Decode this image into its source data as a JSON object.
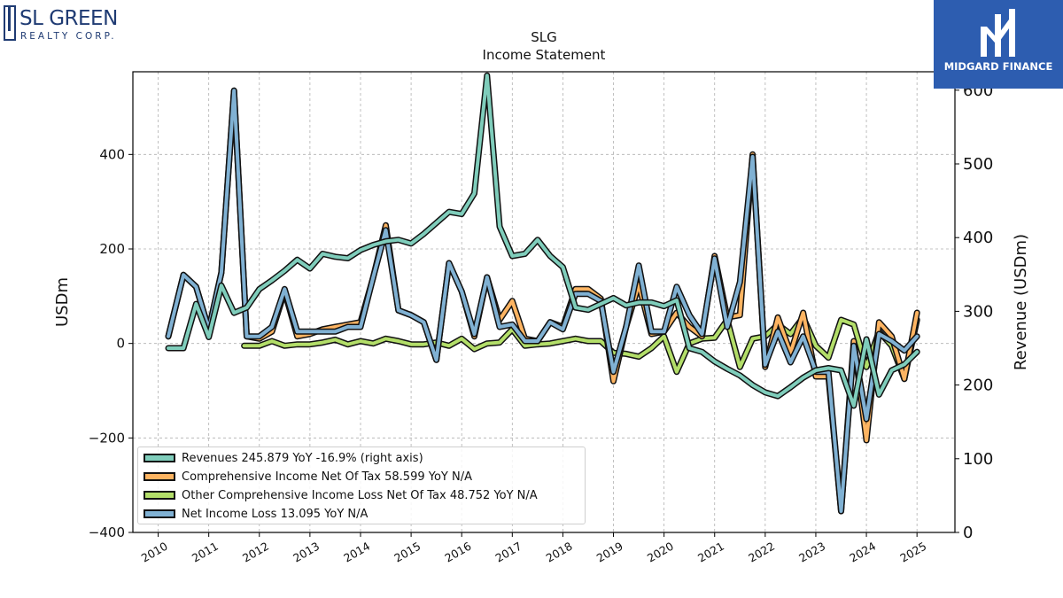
{
  "header": {
    "title": "SLG",
    "subtitle": "Income Statement"
  },
  "logos": {
    "left": {
      "name": "SL GREEN",
      "sub": "REALTY CORP.",
      "color": "#1f3b73"
    },
    "right": {
      "brand": "MIDGARD FINANCE",
      "background": "#2d5db0"
    }
  },
  "chart_data": {
    "type": "line",
    "title": "SLG",
    "subtitle": "Income Statement",
    "ylabel_left": "USDm",
    "ylabel_right": "Revenue (USDm)",
    "ylim_left": [
      -400,
      575
    ],
    "ylim_right": [
      0,
      625
    ],
    "xlim": [
      2009.5,
      2025.75
    ],
    "left_ticks": [
      -400,
      -200,
      0,
      200,
      400
    ],
    "left_tick_labels": [
      "−400",
      "−200",
      "0",
      "200",
      "400"
    ],
    "right_ticks": [
      0,
      100,
      200,
      300,
      400,
      500,
      600
    ],
    "right_tick_labels": [
      "0",
      "100",
      "200",
      "300",
      "400",
      "500",
      "600"
    ],
    "x_ticks": [
      2010,
      2011,
      2012,
      2013,
      2014,
      2015,
      2016,
      2017,
      2018,
      2019,
      2020,
      2021,
      2022,
      2023,
      2024,
      2025
    ],
    "x_tick_labels": [
      "2010",
      "2011",
      "2012",
      "2013",
      "2014",
      "2015",
      "2016",
      "2017",
      "2018",
      "2019",
      "2020",
      "2021",
      "2022",
      "2023",
      "2024",
      "2025"
    ],
    "grid": true,
    "legend_position": "bottom-left",
    "series": [
      {
        "name": "Revenues",
        "legend_label": "Revenues  245.879 YoY -16.9% (right axis)",
        "axis": "right",
        "color": "#7fcdbb",
        "x": [
          2010.2,
          2010.5,
          2010.75,
          2011.0,
          2011.25,
          2011.5,
          2011.75,
          2012.0,
          2012.25,
          2012.5,
          2012.75,
          2013.0,
          2013.25,
          2013.5,
          2013.75,
          2014.0,
          2014.25,
          2014.5,
          2014.75,
          2015.0,
          2015.25,
          2015.5,
          2015.75,
          2016.0,
          2016.25,
          2016.5,
          2016.75,
          2017.0,
          2017.25,
          2017.5,
          2017.75,
          2018.0,
          2018.25,
          2018.5,
          2018.75,
          2019.0,
          2019.25,
          2019.5,
          2019.75,
          2020.0,
          2020.25,
          2020.5,
          2020.75,
          2021.0,
          2021.25,
          2021.5,
          2021.75,
          2022.0,
          2022.25,
          2022.5,
          2022.75,
          2023.0,
          2023.25,
          2023.5,
          2023.75,
          2024.0,
          2024.25,
          2024.5,
          2024.75,
          2025.0
        ],
        "values": [
          250,
          250,
          310,
          265,
          335,
          298,
          305,
          330,
          342,
          355,
          370,
          358,
          378,
          374,
          372,
          383,
          390,
          395,
          397,
          392,
          405,
          420,
          435,
          432,
          460,
          620,
          415,
          375,
          378,
          397,
          375,
          360,
          305,
          302,
          310,
          318,
          308,
          312,
          312,
          307,
          315,
          250,
          245,
          232,
          222,
          213,
          200,
          190,
          185,
          197,
          210,
          220,
          223,
          220,
          172,
          262,
          187,
          220,
          228,
          245
        ]
      },
      {
        "name": "Comprehensive Income Net Of Tax",
        "legend_label": "Comprehensive Income Net Of Tax  58.599 YoY N/A",
        "axis": "left",
        "color": "#fdb462",
        "x": [
          2010.2,
          2010.5,
          2010.75,
          2011.0,
          2011.25,
          2011.5,
          2011.75,
          2012.0,
          2012.25,
          2012.5,
          2012.75,
          2013.0,
          2013.25,
          2013.5,
          2013.75,
          2014.0,
          2014.25,
          2014.5,
          2014.75,
          2015.0,
          2015.25,
          2015.5,
          2015.75,
          2016.0,
          2016.25,
          2016.5,
          2016.75,
          2017.0,
          2017.25,
          2017.5,
          2017.75,
          2018.0,
          2018.25,
          2018.5,
          2018.75,
          2019.0,
          2019.25,
          2019.5,
          2019.75,
          2020.0,
          2020.25,
          2020.5,
          2020.75,
          2021.0,
          2021.25,
          2021.5,
          2021.75,
          2022.0,
          2022.25,
          2022.5,
          2022.75,
          2023.0,
          2023.25,
          2023.5,
          2023.75,
          2024.0,
          2024.25,
          2024.5,
          2024.75,
          2025.0
        ],
        "values": [
          15,
          145,
          120,
          30,
          150,
          535,
          15,
          10,
          25,
          110,
          15,
          20,
          30,
          35,
          40,
          45,
          140,
          250,
          70,
          60,
          45,
          -35,
          170,
          110,
          15,
          140,
          50,
          90,
          10,
          5,
          45,
          35,
          115,
          115,
          95,
          -80,
          35,
          125,
          20,
          25,
          65,
          35,
          15,
          185,
          55,
          60,
          400,
          -50,
          55,
          -20,
          65,
          -70,
          -70,
          -355,
          5,
          -205,
          45,
          15,
          -75,
          65
        ]
      },
      {
        "name": "Other Comprehensive Income Loss Net Of Tax",
        "legend_label": "Other Comprehensive Income Loss Net Of Tax  48.752 YoY N/A",
        "axis": "left",
        "color": "#b3de69",
        "x": [
          2011.7,
          2012.0,
          2012.25,
          2012.5,
          2012.75,
          2013.0,
          2013.25,
          2013.5,
          2013.75,
          2014.0,
          2014.25,
          2014.5,
          2014.75,
          2015.0,
          2015.25,
          2015.5,
          2015.75,
          2016.0,
          2016.25,
          2016.5,
          2016.75,
          2017.0,
          2017.25,
          2017.5,
          2017.75,
          2018.0,
          2018.25,
          2018.5,
          2018.75,
          2019.0,
          2019.25,
          2019.5,
          2019.75,
          2020.0,
          2020.25,
          2020.5,
          2020.75,
          2021.0,
          2021.25,
          2021.5,
          2021.75,
          2022.0,
          2022.25,
          2022.5,
          2022.75,
          2023.0,
          2023.25,
          2023.5,
          2023.75,
          2024.0,
          2024.25,
          2024.5,
          2024.75,
          2025.0
        ],
        "values": [
          -5,
          -5,
          5,
          -5,
          -2,
          -2,
          2,
          8,
          -2,
          5,
          0,
          10,
          5,
          -2,
          -2,
          2,
          -5,
          10,
          -12,
          0,
          2,
          30,
          -5,
          -2,
          0,
          5,
          10,
          5,
          5,
          -20,
          -22,
          -28,
          -10,
          15,
          -60,
          0,
          10,
          12,
          50,
          -50,
          10,
          15,
          40,
          20,
          55,
          -5,
          -30,
          50,
          40,
          -50,
          25,
          -5,
          -75,
          50
        ]
      },
      {
        "name": "Net Income Loss",
        "legend_label": "Net Income Loss  13.095 YoY N/A",
        "axis": "left",
        "color": "#80b1d3",
        "x": [
          2010.2,
          2010.5,
          2010.75,
          2011.0,
          2011.25,
          2011.5,
          2011.75,
          2012.0,
          2012.25,
          2012.5,
          2012.75,
          2013.0,
          2013.25,
          2013.5,
          2013.75,
          2014.0,
          2014.25,
          2014.5,
          2014.75,
          2015.0,
          2015.25,
          2015.5,
          2015.75,
          2016.0,
          2016.25,
          2016.5,
          2016.75,
          2017.0,
          2017.25,
          2017.5,
          2017.75,
          2018.0,
          2018.25,
          2018.5,
          2018.75,
          2019.0,
          2019.25,
          2019.5,
          2019.75,
          2020.0,
          2020.25,
          2020.5,
          2020.75,
          2021.0,
          2021.25,
          2021.5,
          2021.75,
          2022.0,
          2022.25,
          2022.5,
          2022.75,
          2023.0,
          2023.25,
          2023.5,
          2023.75,
          2024.0,
          2024.25,
          2024.5,
          2024.75,
          2025.0
        ],
        "values": [
          15,
          145,
          120,
          30,
          150,
          535,
          15,
          15,
          35,
          115,
          25,
          25,
          25,
          25,
          35,
          35,
          140,
          240,
          70,
          60,
          45,
          -35,
          170,
          110,
          20,
          140,
          35,
          40,
          5,
          5,
          45,
          30,
          105,
          105,
          90,
          -60,
          35,
          165,
          25,
          25,
          120,
          60,
          20,
          180,
          35,
          130,
          395,
          -45,
          25,
          -40,
          15,
          -60,
          -60,
          -355,
          -5,
          -160,
          20,
          5,
          -15,
          15
        ]
      }
    ]
  }
}
